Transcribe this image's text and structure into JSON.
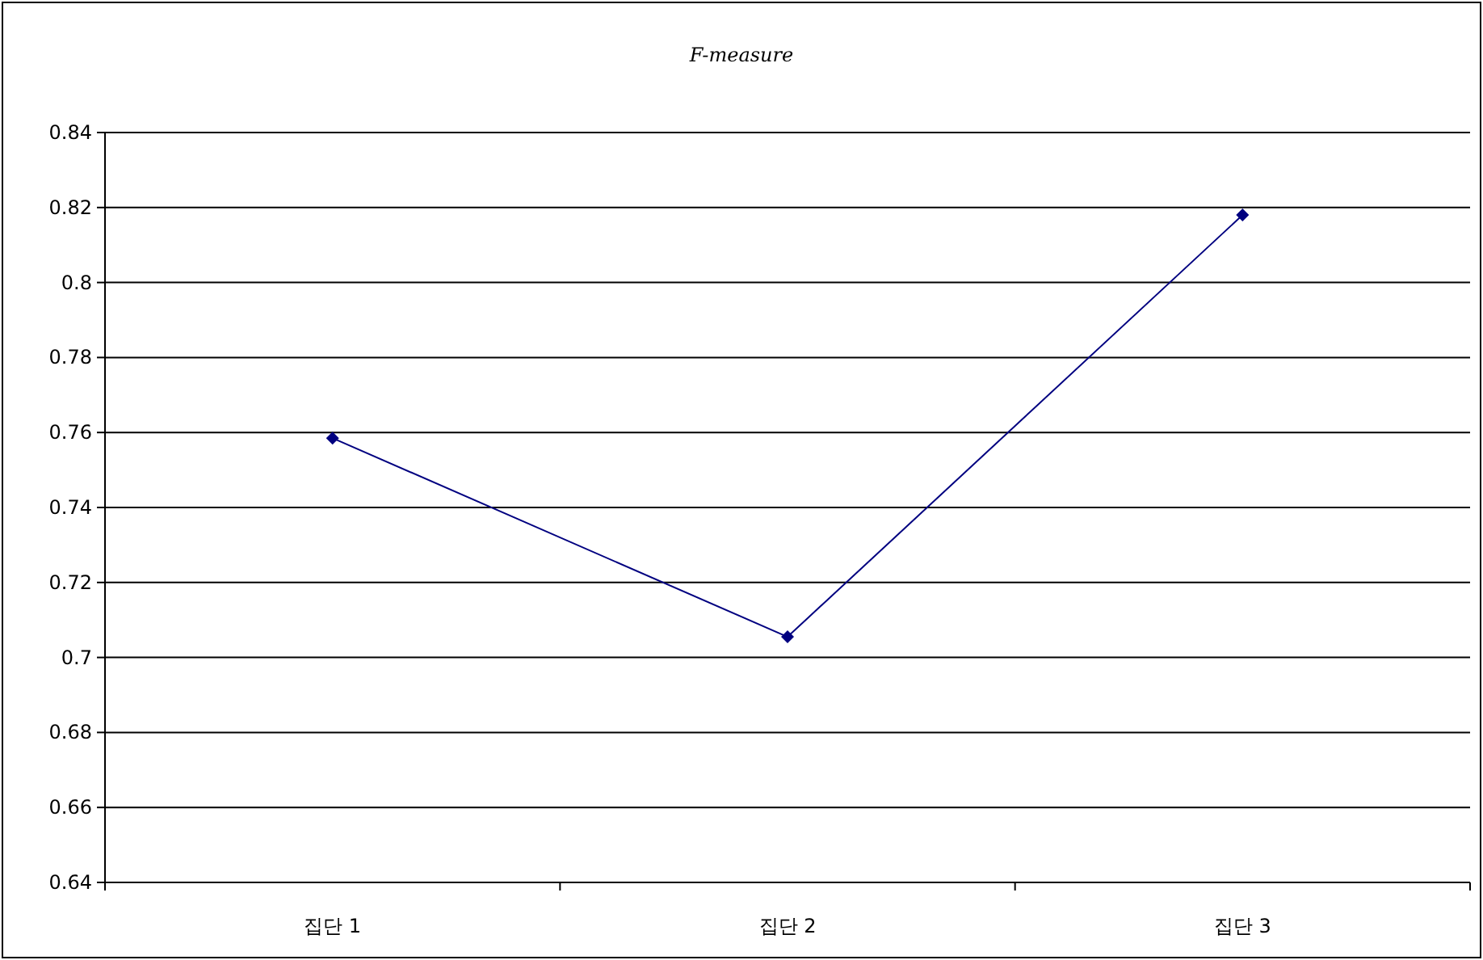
{
  "chart_data": {
    "type": "line",
    "title": "F-measure",
    "categories": [
      "집단 1",
      "집단 2",
      "집단 3"
    ],
    "series": [
      {
        "color": "#000080",
        "values": [
          0.7585,
          0.7055,
          0.818
        ]
      }
    ],
    "ylim": [
      0.64,
      0.84
    ],
    "yticks": [
      0.64,
      0.66,
      0.68,
      0.7,
      0.72,
      0.74,
      0.76,
      0.78,
      0.8,
      0.82,
      0.84
    ],
    "grid": "y",
    "marker": "diamond",
    "line_style": "solid"
  }
}
